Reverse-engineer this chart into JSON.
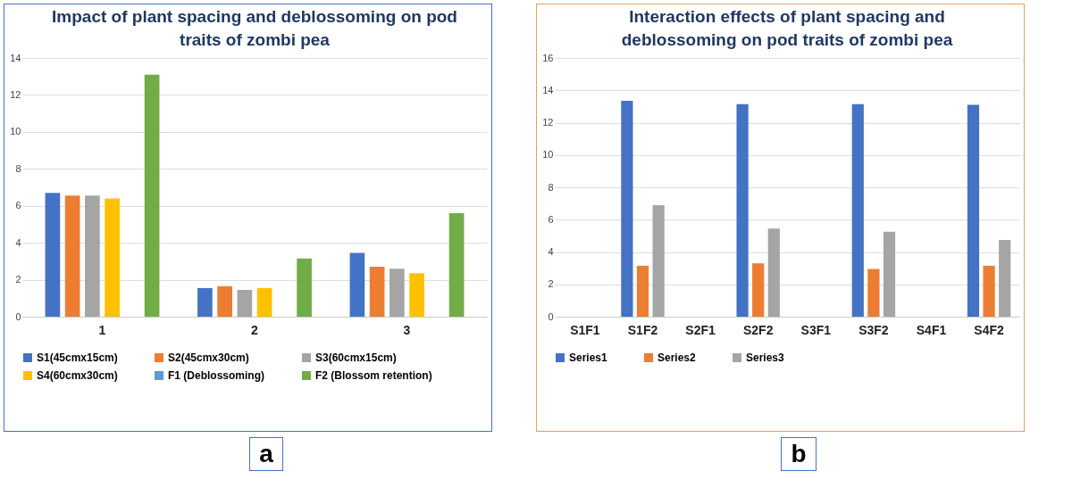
{
  "chart_data": [
    {
      "type": "bar",
      "title": "Impact of plant spacing and deblossoming on pod traits of zombi pea",
      "categories": [
        "1",
        "2",
        "3"
      ],
      "series": [
        {
          "name": "S1(45cmx15cm)",
          "color": "#4472c4",
          "values": [
            6.7,
            1.55,
            3.45
          ]
        },
        {
          "name": "S2(45cmx30cm)",
          "color": "#ed7d31",
          "values": [
            6.55,
            1.65,
            2.7
          ]
        },
        {
          "name": "S3(60cmx15cm)",
          "color": "#a5a5a5",
          "values": [
            6.55,
            1.45,
            2.6
          ]
        },
        {
          "name": "S4(60cmx30cm)",
          "color": "#ffc000",
          "values": [
            6.4,
            1.55,
            2.35
          ]
        },
        {
          "name": "F1 (Deblossoming)",
          "color": "#5b9bd5",
          "values": [
            null,
            null,
            null
          ]
        },
        {
          "name": "F2 (Blossom retention)",
          "color": "#70ad47",
          "values": [
            13.1,
            3.15,
            5.6
          ]
        }
      ],
      "ylim": [
        0,
        14
      ],
      "yticks": [
        0,
        2,
        4,
        6,
        8,
        10,
        12,
        14
      ],
      "grid": "y",
      "legend": "bottom",
      "annotations": [
        "a"
      ]
    },
    {
      "type": "bar",
      "title": "Interaction effects of plant spacing and deblossoming on pod traits of zombi pea",
      "categories": [
        "S1F1",
        "S1F2",
        "S2F1",
        "S2F2",
        "S3F1",
        "S3F2",
        "S4F1",
        "S4F2"
      ],
      "series": [
        {
          "name": "Series1",
          "color": "#4472c4",
          "values": [
            null,
            13.35,
            null,
            13.15,
            null,
            13.15,
            null,
            13.1
          ]
        },
        {
          "name": "Series2",
          "color": "#ed7d31",
          "values": [
            null,
            3.15,
            null,
            3.3,
            null,
            2.95,
            null,
            3.15
          ]
        },
        {
          "name": "Series3",
          "color": "#a5a5a5",
          "values": [
            null,
            6.9,
            null,
            5.45,
            null,
            5.25,
            null,
            4.75
          ]
        }
      ],
      "ylim": [
        0,
        16
      ],
      "yticks": [
        0,
        2,
        4,
        6,
        8,
        10,
        12,
        14,
        16
      ],
      "grid": "y",
      "legend": "bottom",
      "annotations": [
        "b"
      ]
    }
  ]
}
